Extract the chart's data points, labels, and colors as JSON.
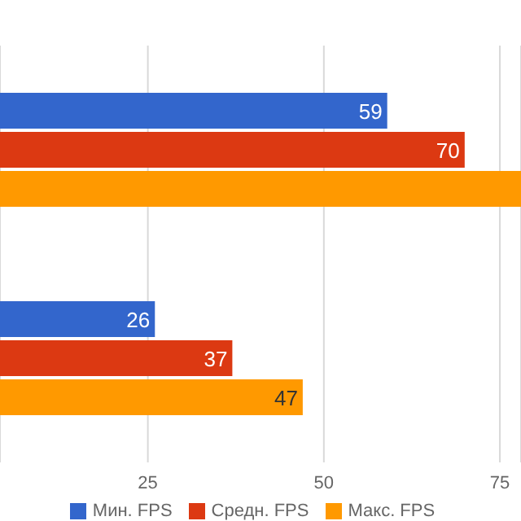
{
  "chart_data": {
    "type": "bar",
    "orientation": "horizontal",
    "categories": [
      null,
      null
    ],
    "series": [
      {
        "name": "Мин. FPS",
        "color": "#3366cc",
        "values": [
          59,
          26
        ],
        "value_labels": [
          "59",
          "26"
        ]
      },
      {
        "name": "Средн. FPS",
        "color": "#dc3912",
        "values": [
          70,
          37
        ],
        "value_labels": [
          "70",
          "37"
        ]
      },
      {
        "name": "Макс. FPS",
        "color": "#ff9900",
        "values": [
          78,
          47
        ],
        "value_labels": [
          null,
          "47"
        ]
      }
    ],
    "xlim": [
      4,
      78
    ],
    "xticks": [
      25,
      50,
      75
    ],
    "grid": "x",
    "legend": "bottom",
    "tick_labels": "x"
  }
}
